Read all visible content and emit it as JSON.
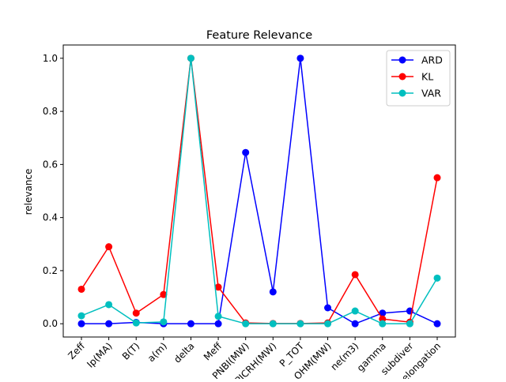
{
  "chart_data": {
    "type": "line",
    "title": "Feature Relevance",
    "xlabel": "",
    "ylabel": "relevance",
    "categories": [
      "Zeff",
      "Ip(MA)",
      "B(T)",
      "a(m)",
      "delta",
      "Meff",
      "PNBI(MW)",
      "PICRH(MW)",
      "P_TOT",
      "P_OHM(MW)",
      "ne(m3)",
      "gamma",
      "subdiver",
      "elongation"
    ],
    "yticks": [
      "0.0",
      "0.2",
      "0.4",
      "0.6",
      "0.8",
      "1.0"
    ],
    "ylim": [
      -0.05,
      1.05
    ],
    "legend_position": "upper right",
    "grid": false,
    "series": [
      {
        "name": "ARD",
        "color": "#0000ff",
        "values": [
          0.0,
          0.0,
          0.005,
          0.0,
          0.0,
          0.0,
          0.645,
          0.12,
          1.0,
          0.06,
          0.0,
          0.04,
          0.048,
          0.0
        ]
      },
      {
        "name": "KL",
        "color": "#ff0000",
        "values": [
          0.13,
          0.29,
          0.04,
          0.11,
          1.0,
          0.138,
          0.003,
          0.001,
          0.001,
          0.003,
          0.185,
          0.018,
          0.006,
          0.55
        ]
      },
      {
        "name": "VAR",
        "color": "#00bfbf",
        "values": [
          0.03,
          0.072,
          0.003,
          0.007,
          1.0,
          0.028,
          0.0,
          0.0,
          0.0,
          0.0,
          0.048,
          0.0,
          0.0,
          0.172
        ]
      }
    ]
  }
}
